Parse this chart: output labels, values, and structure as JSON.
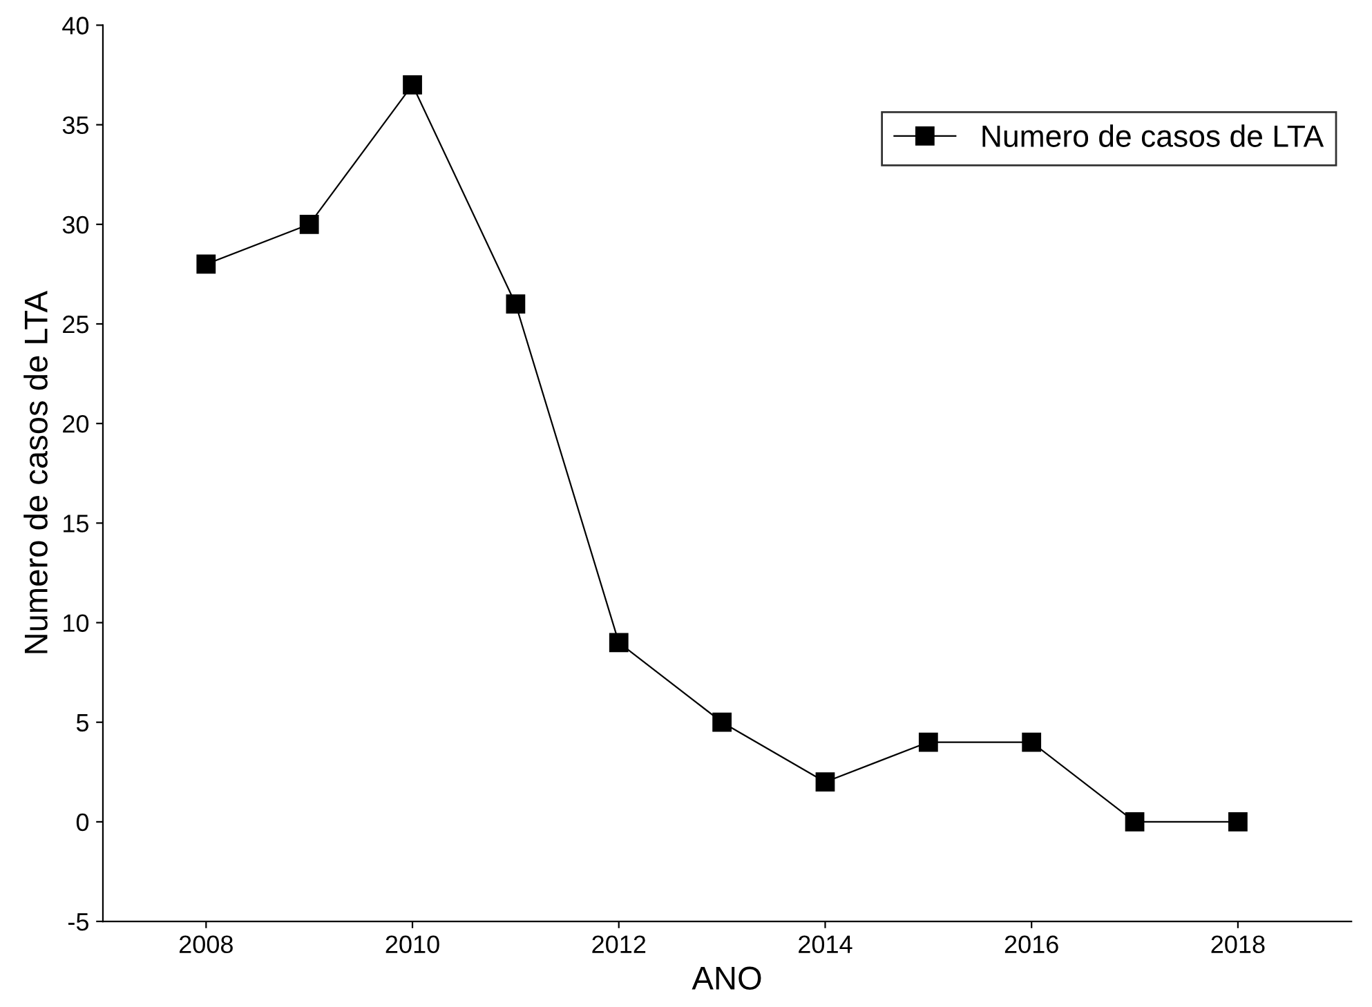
{
  "chart_data": {
    "type": "line",
    "xlabel": "ANO",
    "ylabel": "Numero de casos de LTA",
    "x": [
      2008,
      2009,
      2010,
      2011,
      2012,
      2013,
      2014,
      2015,
      2016,
      2017,
      2018
    ],
    "series": [
      {
        "name": "Numero de casos de LTA",
        "color": "#000000",
        "values": [
          28,
          30,
          37,
          26,
          9,
          5,
          2,
          4,
          4,
          0,
          0
        ]
      }
    ],
    "xlim": [
      2007,
      2019.1
    ],
    "xticks": [
      2008,
      2010,
      2012,
      2014,
      2016,
      2018
    ],
    "ylim": [
      -5,
      40
    ],
    "yticks": [
      -5,
      0,
      5,
      10,
      15,
      20,
      25,
      30,
      35,
      40
    ],
    "marker": "square",
    "line_style": "solid",
    "grid": false,
    "legend": "top right"
  }
}
